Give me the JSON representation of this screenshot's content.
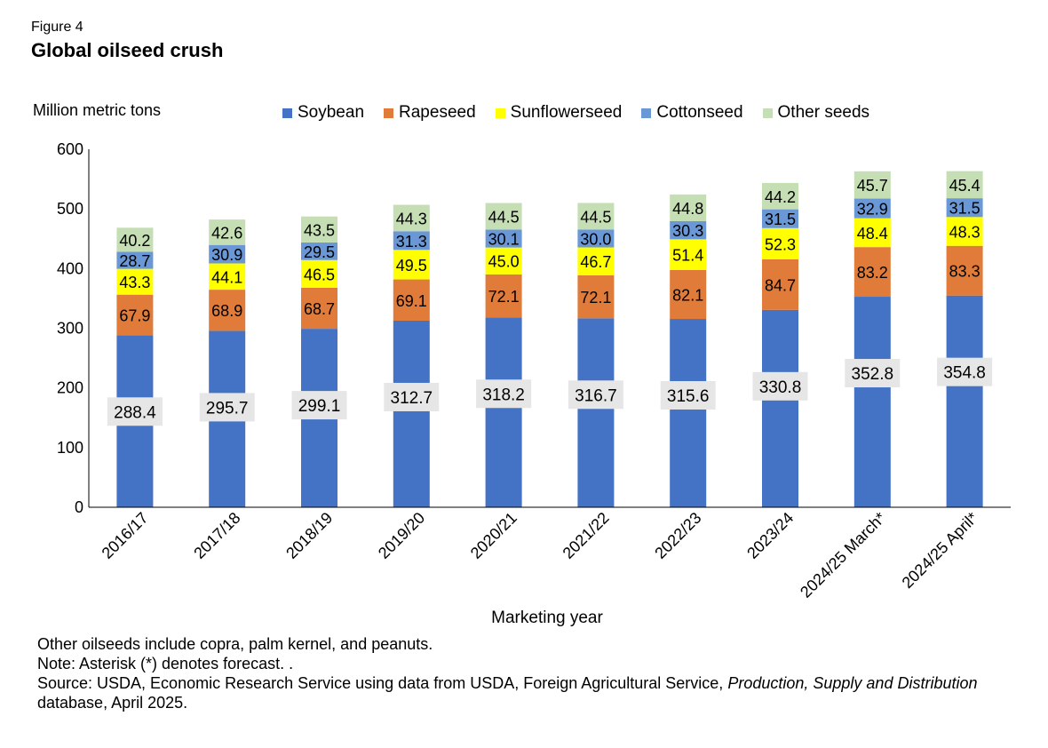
{
  "figure_label": "Figure 4",
  "chart_data": {
    "type": "bar",
    "stacked": true,
    "title": "Global oilseed crush",
    "ylabel": "Million metric tons",
    "xlabel": "Marketing year",
    "ylim": [
      0,
      600
    ],
    "yticks": [
      0,
      100,
      200,
      300,
      400,
      500,
      600
    ],
    "grid": false,
    "legend_position": "top",
    "categories": [
      "2016/17",
      "2017/18",
      "2018/19",
      "2019/20",
      "2020/21",
      "2021/22",
      "2022/23",
      "2023/24",
      "2024/25 March*",
      "2024/25 April*"
    ],
    "series": [
      {
        "name": "Soybean",
        "color": "#4472C4",
        "values": [
          288.4,
          295.7,
          299.1,
          312.7,
          318.2,
          316.7,
          315.6,
          330.8,
          352.8,
          354.8
        ],
        "labels": [
          "288.4",
          "295.7",
          "299.1",
          "312.7",
          "318.2",
          "316.7",
          "315.6",
          "330.8",
          "352.8",
          "354.8"
        ]
      },
      {
        "name": "Rapeseed",
        "color": "#E07B39",
        "values": [
          67.9,
          68.9,
          68.7,
          69.1,
          72.1,
          72.1,
          82.1,
          84.7,
          83.2,
          83.3
        ],
        "labels": [
          "67.9",
          "68.9",
          "68.7",
          "69.1",
          "72.1",
          "72.1",
          "82.1",
          "84.7",
          "83.2",
          "83.3"
        ]
      },
      {
        "name": "Sunflowerseed",
        "color": "#FFFF00",
        "values": [
          43.3,
          44.1,
          46.5,
          49.5,
          45.0,
          46.7,
          51.4,
          52.3,
          48.4,
          48.3
        ],
        "labels": [
          "43.3",
          "44.1",
          "46.5",
          "49.5",
          "45.0",
          "46.7",
          "51.4",
          "52.3",
          "48.4",
          "48.3"
        ]
      },
      {
        "name": "Cottonseed",
        "color": "#6A98D6",
        "values": [
          28.7,
          30.9,
          29.5,
          31.3,
          30.1,
          30.0,
          30.3,
          31.5,
          32.9,
          31.5
        ],
        "labels": [
          "28.7",
          "30.9",
          "29.5",
          "31.3",
          "30.1",
          "30.0",
          "30.3",
          "31.5",
          "32.9",
          "31.5"
        ]
      },
      {
        "name": "Other seeds",
        "color": "#C5DEB4",
        "values": [
          40.2,
          42.6,
          43.5,
          44.3,
          44.5,
          44.5,
          44.8,
          44.2,
          45.7,
          45.4
        ],
        "labels": [
          "40.2",
          "42.6",
          "43.5",
          "44.3",
          "44.5",
          "44.5",
          "44.8",
          "44.2",
          "45.7",
          "45.4"
        ]
      }
    ]
  },
  "notes": {
    "line1": "Other oilseeds include copra, palm kernel, and peanuts.",
    "line2": "Note: Asterisk (*) denotes forecast. .",
    "source_prefix": "Source: USDA, Economic Research Service using data from USDA, Foreign Agricultural Service, ",
    "source_italic": "Production, Supply and Distribution",
    "source_suffix": " database, April 2025."
  }
}
